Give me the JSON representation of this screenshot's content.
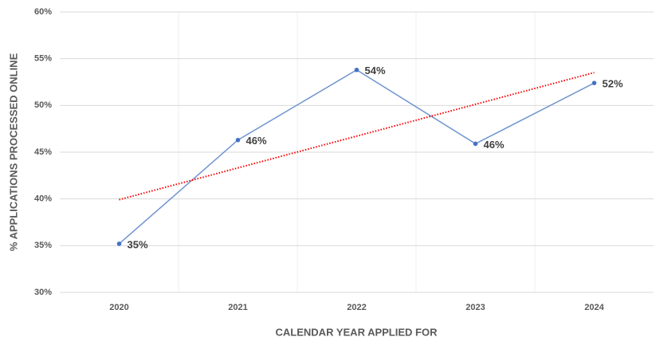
{
  "chart_data": {
    "type": "line",
    "x_label": "CALENDAR YEAR APPLIED FOR",
    "y_label": "% APPLICATIONS PROCESSED ONLINE",
    "categories": [
      "2020",
      "2021",
      "2022",
      "2023",
      "2024"
    ],
    "series": [
      {
        "color": "#6f94cf",
        "values": [
          35.2,
          46.3,
          53.8,
          45.9,
          52.4
        ],
        "value_labels": [
          "35%",
          "46%",
          "54%",
          "46%",
          "52%"
        ]
      }
    ],
    "trendline": {
      "type": "linear",
      "color": "#ff0000",
      "style": "dotted"
    },
    "ylim": [
      30,
      60
    ],
    "yticks": [
      {
        "value": 30,
        "label": "30%"
      },
      {
        "value": 35,
        "label": "35%"
      },
      {
        "value": 40,
        "label": "40%"
      },
      {
        "value": 45,
        "label": "45%"
      },
      {
        "value": 50,
        "label": "50%"
      },
      {
        "value": 55,
        "label": "55%"
      },
      {
        "value": 60,
        "label": "60%"
      }
    ],
    "grid": true
  }
}
